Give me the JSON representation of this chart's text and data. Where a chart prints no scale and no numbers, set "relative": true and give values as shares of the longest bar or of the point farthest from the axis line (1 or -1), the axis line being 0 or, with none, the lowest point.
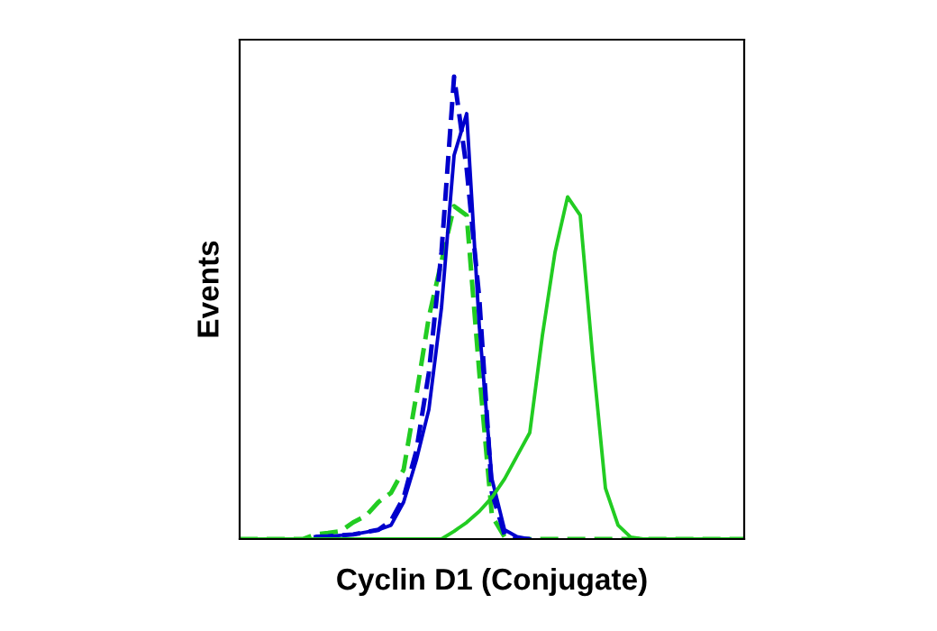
{
  "chart_data": {
    "type": "line",
    "relative": true,
    "xlabel": "Cyclin D1 (Conjugate)",
    "ylabel": "Events",
    "legend": false,
    "grid": false,
    "categories": [
      null,
      null,
      null,
      null,
      null,
      null,
      null,
      null,
      null,
      null,
      null,
      null,
      null,
      null,
      null,
      null,
      null,
      null,
      null,
      null,
      null,
      null,
      null,
      null,
      null,
      null,
      null,
      null,
      null,
      null,
      null,
      null,
      null,
      null,
      null,
      null,
      null,
      null,
      null,
      null,
      null
    ],
    "series": [
      {
        "color": "#22cc22",
        "line_style": "dashed",
        "values": [
          0,
          0,
          0,
          0,
          0,
          0,
          0.01,
          0.013,
          0.017,
          0.036,
          0.05,
          0.08,
          0.1,
          0.15,
          0.31,
          0.48,
          0.6,
          0.72,
          0.7,
          0.36,
          0.05,
          0.005,
          0,
          0,
          0,
          0,
          0,
          0,
          0,
          0,
          0,
          0,
          0,
          0,
          0,
          0,
          0,
          0,
          0,
          0,
          0
        ]
      },
      {
        "color": "#0000cc",
        "line_style": "dashed",
        "values": [
          null,
          null,
          null,
          null,
          null,
          null,
          0.005,
          0.006,
          0.008,
          0.01,
          0.015,
          0.02,
          0.04,
          0.09,
          0.19,
          0.36,
          0.62,
          1,
          0.8,
          0.52,
          0.1,
          0.01,
          0,
          0,
          null,
          null,
          null,
          null,
          null,
          null,
          null,
          null,
          null,
          null,
          null,
          null,
          null,
          null,
          null,
          null,
          null
        ]
      },
      {
        "color": "#0000cc",
        "line_style": "solid",
        "values": [
          null,
          null,
          null,
          null,
          null,
          null,
          0.005,
          0.005,
          0.008,
          0.01,
          0.015,
          0.02,
          0.03,
          0.08,
          0.17,
          0.28,
          0.5,
          0.83,
          0.92,
          0.46,
          0.13,
          0.02,
          0.005,
          0,
          null,
          null,
          null,
          null,
          null,
          null,
          null,
          null,
          null,
          null,
          null,
          null,
          null,
          null,
          null,
          null,
          null
        ]
      },
      {
        "color": "#22cc22",
        "line_style": "solid",
        "values": [
          0,
          0,
          0,
          0,
          0,
          0,
          0,
          0,
          0,
          0,
          0,
          0,
          0,
          0,
          0,
          0,
          0,
          0.017,
          0.036,
          0.06,
          0.09,
          0.13,
          0.18,
          0.23,
          0.44,
          0.62,
          0.74,
          0.7,
          0.39,
          0.11,
          0.03,
          0.004,
          0,
          0,
          0,
          0,
          0,
          0,
          0,
          0,
          0
        ]
      }
    ]
  }
}
